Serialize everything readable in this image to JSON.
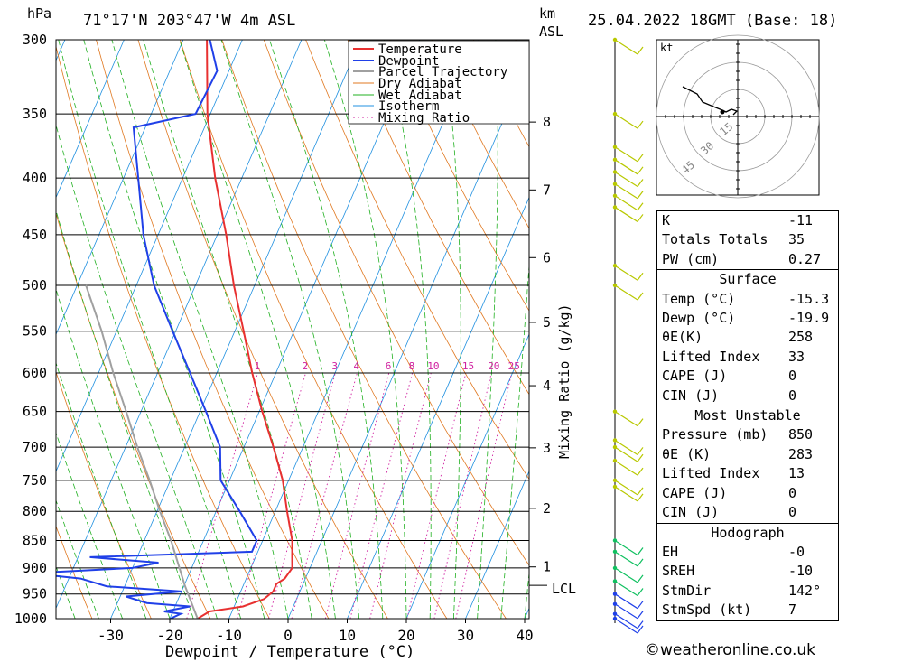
{
  "header": {
    "location": "71°17'N  203°47'W  4m  ASL",
    "datetime": "25.04.2022  18GMT  (Base: 18)",
    "hpa_label": "hPa",
    "km_label": "km",
    "asl_label": "ASL"
  },
  "chart_data": {
    "type": "line",
    "title": "Skew-T log-P sounding",
    "xlabel": "Dewpoint / Temperature (°C)",
    "ylabel": "hPa",
    "right_axis_label": "Mixing Ratio (g/kg)",
    "xlim": [
      -40,
      40
    ],
    "ylim": [
      1000,
      300
    ],
    "x_ticks": [
      -30,
      -20,
      -10,
      0,
      10,
      20,
      30,
      40
    ],
    "pressure_levels": [
      300,
      350,
      400,
      450,
      500,
      550,
      600,
      650,
      700,
      750,
      800,
      850,
      900,
      950,
      1000
    ],
    "km_ticks": [
      {
        "km": 1,
        "p": 898
      },
      {
        "km": 2,
        "p": 795
      },
      {
        "km": 3,
        "p": 701
      },
      {
        "km": 4,
        "p": 616
      },
      {
        "km": 5,
        "p": 540
      },
      {
        "km": 6,
        "p": 472
      },
      {
        "km": 7,
        "p": 410
      },
      {
        "km": 8,
        "p": 356
      }
    ],
    "lcl": {
      "label": "LCL",
      "p": 933
    },
    "mixing_ratio_labels": [
      1,
      2,
      3,
      4,
      6,
      8,
      10,
      15,
      20,
      25
    ],
    "legend": [
      "Temperature",
      "Dewpoint",
      "Parcel Trajectory",
      "Dry Adiabat",
      "Wet Adiabat",
      "Isotherm",
      "Mixing Ratio"
    ],
    "legend_position": "top-right",
    "series": [
      {
        "name": "Temperature",
        "color": "#e83030",
        "points": [
          [
            1000,
            -15.3
          ],
          [
            985,
            -13.8
          ],
          [
            975,
            -8.5
          ],
          [
            960,
            -5.5
          ],
          [
            945,
            -4.5
          ],
          [
            930,
            -4.5
          ],
          [
            920,
            -3.5
          ],
          [
            900,
            -3.0
          ],
          [
            880,
            -3.8
          ],
          [
            850,
            -5.0
          ],
          [
            800,
            -8.0
          ],
          [
            750,
            -11.0
          ],
          [
            700,
            -15.0
          ],
          [
            650,
            -19.5
          ],
          [
            600,
            -24.0
          ],
          [
            550,
            -28.5
          ],
          [
            500,
            -33.5
          ],
          [
            450,
            -38.5
          ],
          [
            400,
            -44.5
          ],
          [
            350,
            -50.5
          ],
          [
            300,
            -56.0
          ]
        ]
      },
      {
        "name": "Dewpoint",
        "color": "#2040e8",
        "points": [
          [
            1000,
            -19.9
          ],
          [
            990,
            -18.5
          ],
          [
            985,
            -21.5
          ],
          [
            975,
            -17.5
          ],
          [
            968,
            -25.0
          ],
          [
            955,
            -29.0
          ],
          [
            945,
            -20.0
          ],
          [
            935,
            -33.0
          ],
          [
            920,
            -38.0
          ],
          [
            910,
            -47.0
          ],
          [
            900,
            -30.0
          ],
          [
            890,
            -26.0
          ],
          [
            880,
            -38.0
          ],
          [
            870,
            -11.0
          ],
          [
            850,
            -11.0
          ],
          [
            800,
            -16.0
          ],
          [
            750,
            -21.5
          ],
          [
            700,
            -24.0
          ],
          [
            650,
            -29.0
          ],
          [
            600,
            -34.5
          ],
          [
            550,
            -40.5
          ],
          [
            500,
            -47.0
          ],
          [
            450,
            -52.5
          ],
          [
            400,
            -57.5
          ],
          [
            360,
            -62.0
          ],
          [
            350,
            -52.5
          ],
          [
            320,
            -52.0
          ],
          [
            300,
            -55.5
          ]
        ]
      },
      {
        "name": "Parcel Trajectory",
        "color": "#a0a0a0",
        "points": [
          [
            1000,
            -15.3
          ],
          [
            933,
            -19.9
          ],
          [
            850,
            -25.5
          ],
          [
            800,
            -29.5
          ],
          [
            750,
            -33.5
          ],
          [
            700,
            -38.0
          ],
          [
            650,
            -42.5
          ],
          [
            600,
            -47.5
          ],
          [
            550,
            -52.5
          ],
          [
            500,
            -58.5
          ]
        ]
      }
    ]
  },
  "hodograph": {
    "unit_label": "kt",
    "ring_labels": [
      "15",
      "30",
      "45"
    ]
  },
  "indices": {
    "k_label": "K",
    "k_value": "-11",
    "tt_label": "Totals Totals",
    "tt_value": "35",
    "pw_label": "PW (cm)",
    "pw_value": "0.27",
    "surface_title": "Surface",
    "s_temp_label": "Temp (°C)",
    "s_temp_value": "-15.3",
    "s_dewp_label": "Dewp (°C)",
    "s_dewp_value": "-19.9",
    "s_theta_label": "θE(K)",
    "s_theta_value": "258",
    "s_li_label": "Lifted Index",
    "s_li_value": "33",
    "s_cape_label": "CAPE (J)",
    "s_cape_value": "0",
    "s_cin_label": "CIN (J)",
    "s_cin_value": "0",
    "mu_title": "Most Unstable",
    "mu_p_label": "Pressure (mb)",
    "mu_p_value": "850",
    "mu_theta_label": "θE (K)",
    "mu_theta_value": "283",
    "mu_li_label": "Lifted Index",
    "mu_li_value": "13",
    "mu_cape_label": "CAPE (J)",
    "mu_cape_value": "0",
    "mu_cin_label": "CIN (J)",
    "mu_cin_value": "0",
    "hodo_title": "Hodograph",
    "eh_label": "EH",
    "eh_value": "-0",
    "sreh_label": "SREH",
    "sreh_value": "-10",
    "stmdir_label": "StmDir",
    "stmdir_value": "142°",
    "stmspd_label": "StmSpd (kt)",
    "stmspd_value": "7"
  },
  "footer": {
    "copyright": "©weatheronline.co.uk"
  },
  "colors": {
    "temperature": "#e83030",
    "dewpoint": "#2040e8",
    "parcel": "#a0a0a0",
    "dry_adiabat": "#e07820",
    "wet_adiabat": "#20b020",
    "isotherm": "#2090e0",
    "mixing_ratio": "#d020a0",
    "wind_barb": "#b8c800",
    "barb_green": "#10c060"
  }
}
